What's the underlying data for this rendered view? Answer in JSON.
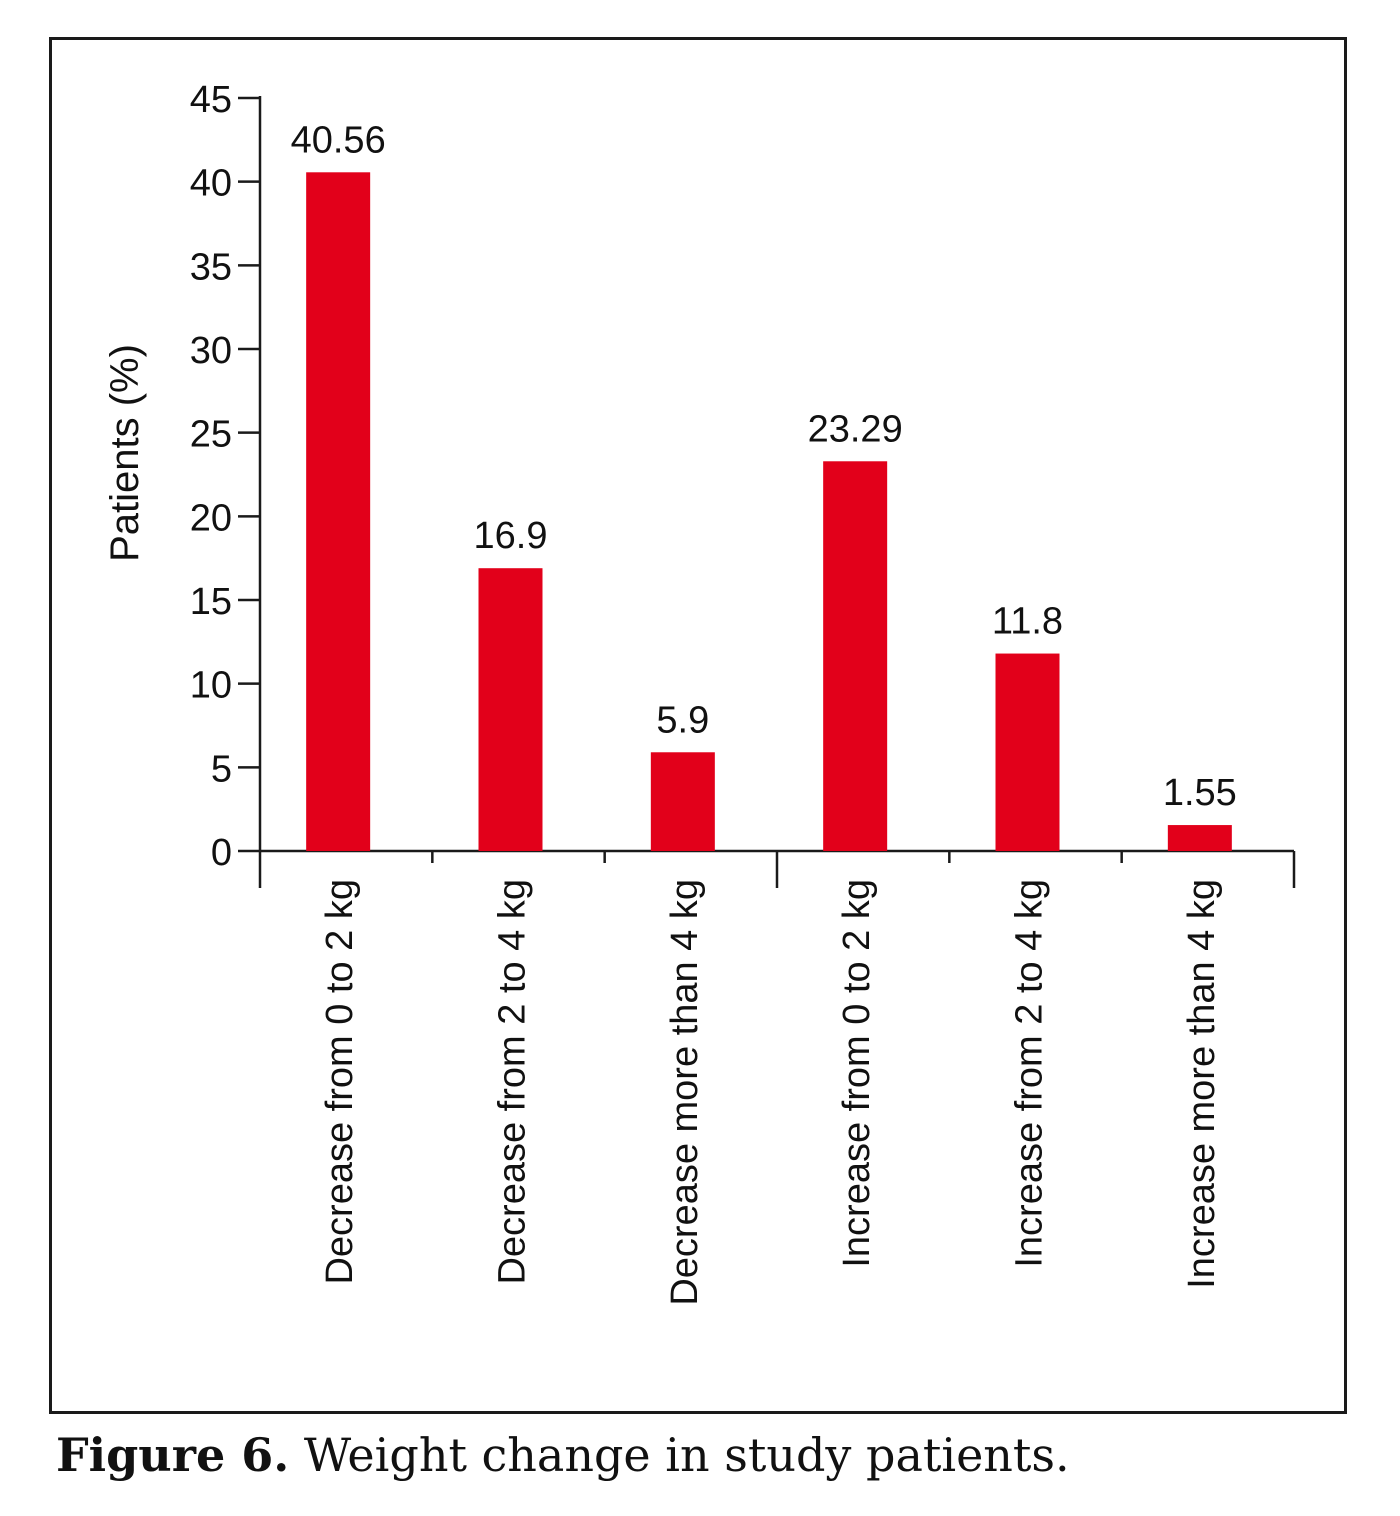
{
  "figure": {
    "label": "Figure 6.",
    "text": " Weight change in study patients."
  },
  "chart_data": {
    "type": "bar",
    "categories": [
      "Decrease from 0 to 2 kg",
      "Decrease from 2 to 4 kg",
      "Decrease more than 4 kg",
      "Increase from 0 to 2 kg",
      "Increase from 2 to 4 kg",
      "Increase more than 4 kg"
    ],
    "values": [
      40.56,
      16.9,
      5.9,
      23.29,
      11.8,
      1.55
    ],
    "data_labels": [
      "40.56",
      "16.9",
      "5.9",
      "23.29",
      "11.8",
      "1.55"
    ],
    "ylabel": "Patients (%)",
    "xlabel": "",
    "ylim": [
      0,
      45
    ],
    "yticks": [
      0,
      5,
      10,
      15,
      20,
      25,
      30,
      35,
      40,
      45
    ],
    "grid": false,
    "bar_color": "#e2001a"
  }
}
